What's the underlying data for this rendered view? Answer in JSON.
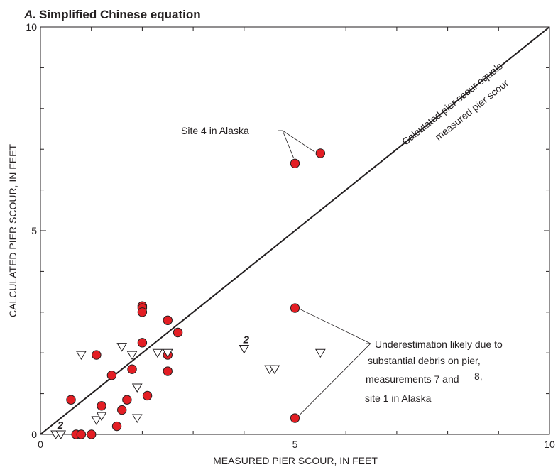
{
  "chart_data": {
    "type": "scatter",
    "panel_letter": "A.",
    "title": "Simplified Chinese equation",
    "xlabel": "MEASURED PIER SCOUR, IN FEET",
    "ylabel": "CALCULATED PIER SCOUR, IN FEET",
    "xlim": [
      0,
      10
    ],
    "ylim": [
      0,
      10
    ],
    "x_major_ticks": [
      0,
      5,
      10
    ],
    "x_tick_labels": [
      "0",
      "5",
      "10"
    ],
    "y_major_ticks": [
      0,
      5,
      10
    ],
    "y_tick_labels": [
      "0",
      "5",
      "10"
    ],
    "minor_tick_step": 1,
    "grid": false,
    "reference_line": {
      "points": [
        [
          0,
          0
        ],
        [
          10,
          10
        ]
      ],
      "label_line1": "Calculated pier scour equals",
      "label_line2": "measured pier scour"
    },
    "series": [
      {
        "marker": "circle",
        "color": "#e31e24",
        "points": [
          [
            0.6,
            0.85
          ],
          [
            0.7,
            0.0
          ],
          [
            0.8,
            0.0
          ],
          [
            1.0,
            0.0
          ],
          [
            1.1,
            1.95
          ],
          [
            1.2,
            0.7
          ],
          [
            1.4,
            1.45
          ],
          [
            1.5,
            0.2
          ],
          [
            1.6,
            0.6
          ],
          [
            1.7,
            0.85
          ],
          [
            1.8,
            1.6
          ],
          [
            2.0,
            3.15
          ],
          [
            2.0,
            3.1
          ],
          [
            2.0,
            3.0
          ],
          [
            2.0,
            2.25
          ],
          [
            2.1,
            0.95
          ],
          [
            2.5,
            2.8
          ],
          [
            2.5,
            1.95
          ],
          [
            2.5,
            1.55
          ],
          [
            2.7,
            2.5
          ],
          [
            5.0,
            6.65
          ],
          [
            5.5,
            6.9
          ],
          [
            5.0,
            3.1
          ],
          [
            5.0,
            0.4
          ]
        ]
      },
      {
        "marker": "triangle-down",
        "color": "#ffffff",
        "points": [
          [
            0.3,
            0.0
          ],
          [
            0.4,
            0.0
          ],
          [
            0.8,
            1.95
          ],
          [
            1.1,
            0.35
          ],
          [
            1.2,
            0.45
          ],
          [
            1.6,
            2.15
          ],
          [
            1.8,
            1.95
          ],
          [
            1.9,
            1.15
          ],
          [
            1.9,
            0.4
          ],
          [
            2.3,
            2.0
          ],
          [
            2.5,
            2.0
          ],
          [
            4.0,
            2.1
          ],
          [
            4.5,
            1.6
          ],
          [
            4.6,
            1.6
          ],
          [
            5.5,
            2.0
          ]
        ]
      }
    ],
    "count_labels": [
      {
        "text": "2",
        "x": 4.0,
        "y": 2.1
      },
      {
        "text": "2",
        "x": 0.35,
        "y": 0.0
      }
    ],
    "annotations": {
      "site4": "Site 4 in Alaska",
      "underestimation": [
        "Underestimation likely due to",
        "substantial debris on pier,",
        "measurements 7 and",
        "8,",
        "site 1 in Alaska"
      ]
    }
  }
}
